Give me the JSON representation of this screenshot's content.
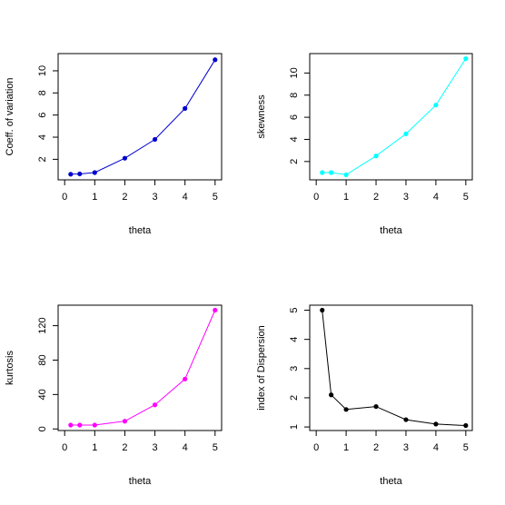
{
  "chart_data": [
    {
      "type": "line",
      "xlabel": "theta",
      "ylabel": "Coeff. of variation",
      "xlim": [
        0,
        5
      ],
      "ylim": [
        0.6,
        11.1
      ],
      "x_ticks": [
        0,
        1,
        2,
        3,
        4,
        5
      ],
      "y_ticks": [
        2,
        4,
        6,
        8,
        10
      ],
      "color": "#0000CD",
      "series": [
        {
          "x": [
            0.2,
            0.5,
            1,
            2,
            3,
            4,
            5
          ],
          "y": [
            0.65,
            0.68,
            0.8,
            2.1,
            3.8,
            6.6,
            11.0
          ]
        }
      ]
    },
    {
      "type": "line",
      "xlabel": "theta",
      "ylabel": "skewness",
      "xlim": [
        0,
        5
      ],
      "ylim": [
        0.8,
        11.3
      ],
      "x_ticks": [
        0,
        1,
        2,
        3,
        4,
        5
      ],
      "y_ticks": [
        2,
        4,
        6,
        8,
        10
      ],
      "color": "#00FFFF",
      "series": [
        {
          "x": [
            0.2,
            0.5,
            1,
            2,
            3,
            4,
            5
          ],
          "y": [
            1.0,
            1.0,
            0.8,
            2.5,
            4.5,
            7.1,
            11.3
          ]
        }
      ]
    },
    {
      "type": "line",
      "xlabel": "theta",
      "ylabel": "kurtosis",
      "xlim": [
        0,
        5
      ],
      "ylim": [
        4,
        138
      ],
      "x_ticks": [
        0,
        1,
        2,
        3,
        4,
        5
      ],
      "y_ticks": [
        0,
        40,
        80,
        120
      ],
      "color": "#FF00FF",
      "series": [
        {
          "x": [
            0.2,
            0.5,
            1,
            2,
            3,
            4,
            5
          ],
          "y": [
            4.5,
            4.5,
            4.5,
            9,
            28,
            58,
            138
          ]
        }
      ]
    },
    {
      "type": "line",
      "xlabel": "theta",
      "ylabel": "index of Dispersion",
      "xlim": [
        0,
        5
      ],
      "ylim": [
        1.05,
        5.0
      ],
      "x_ticks": [
        0,
        1,
        2,
        3,
        4,
        5
      ],
      "y_ticks": [
        1,
        2,
        3,
        4,
        5
      ],
      "color": "#000000",
      "series": [
        {
          "x": [
            0.2,
            0.5,
            1,
            2,
            3,
            4,
            5
          ],
          "y": [
            5.0,
            2.1,
            1.6,
            1.7,
            1.25,
            1.1,
            1.05
          ]
        }
      ]
    }
  ]
}
